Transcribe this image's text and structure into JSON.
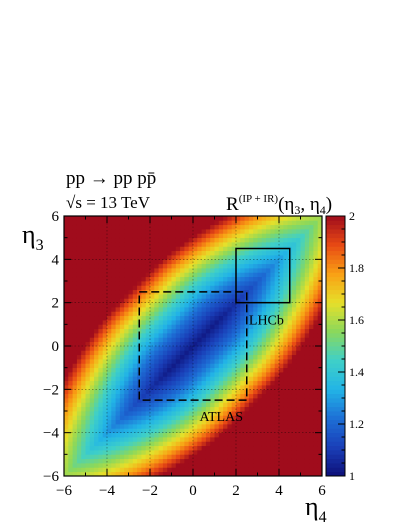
{
  "chart_data": {
    "type": "heatmap",
    "process_label": "pp → pp pp̄",
    "energy_label": "√s = 13 TeV",
    "z_title": "R^(IP + IR)(η3, η4)",
    "xlabel": "η4",
    "ylabel": "η3",
    "xlim": [
      -6,
      6
    ],
    "ylim": [
      -6,
      6
    ],
    "xticks": [
      "−6",
      "−4",
      "−2",
      "0",
      "2",
      "4",
      "6"
    ],
    "yticks": [
      "−6",
      "−4",
      "−2",
      "0",
      "2",
      "4",
      "6"
    ],
    "zlim": [
      1,
      2
    ],
    "zticks": [
      "1",
      "1.2",
      "1.4",
      "1.6",
      "1.8",
      "2"
    ],
    "grid": true,
    "palette": [
      "#0d0f78",
      "#1a3fb8",
      "#1d6fd6",
      "#22b4e6",
      "#3fd0c8",
      "#8ad85c",
      "#e6e02a",
      "#f9a014",
      "#e84a14",
      "#a00c1c"
    ],
    "surface_model": {
      "diagonal_min": 1.03,
      "max": 2.0,
      "description_values": {
        "at_diff_2": 1.25,
        "at_diff_4": 1.4,
        "corner": 2.0
      }
    },
    "annotations": [
      {
        "label": "ATLAS",
        "eta4_range": [
          -2.5,
          2.5
        ],
        "eta3_range": [
          -2.5,
          2.5
        ],
        "style": "dashed"
      },
      {
        "label": "LHCb",
        "eta4_range": [
          2.0,
          4.5
        ],
        "eta3_range": [
          2.0,
          4.5
        ],
        "style": "solid"
      }
    ]
  }
}
